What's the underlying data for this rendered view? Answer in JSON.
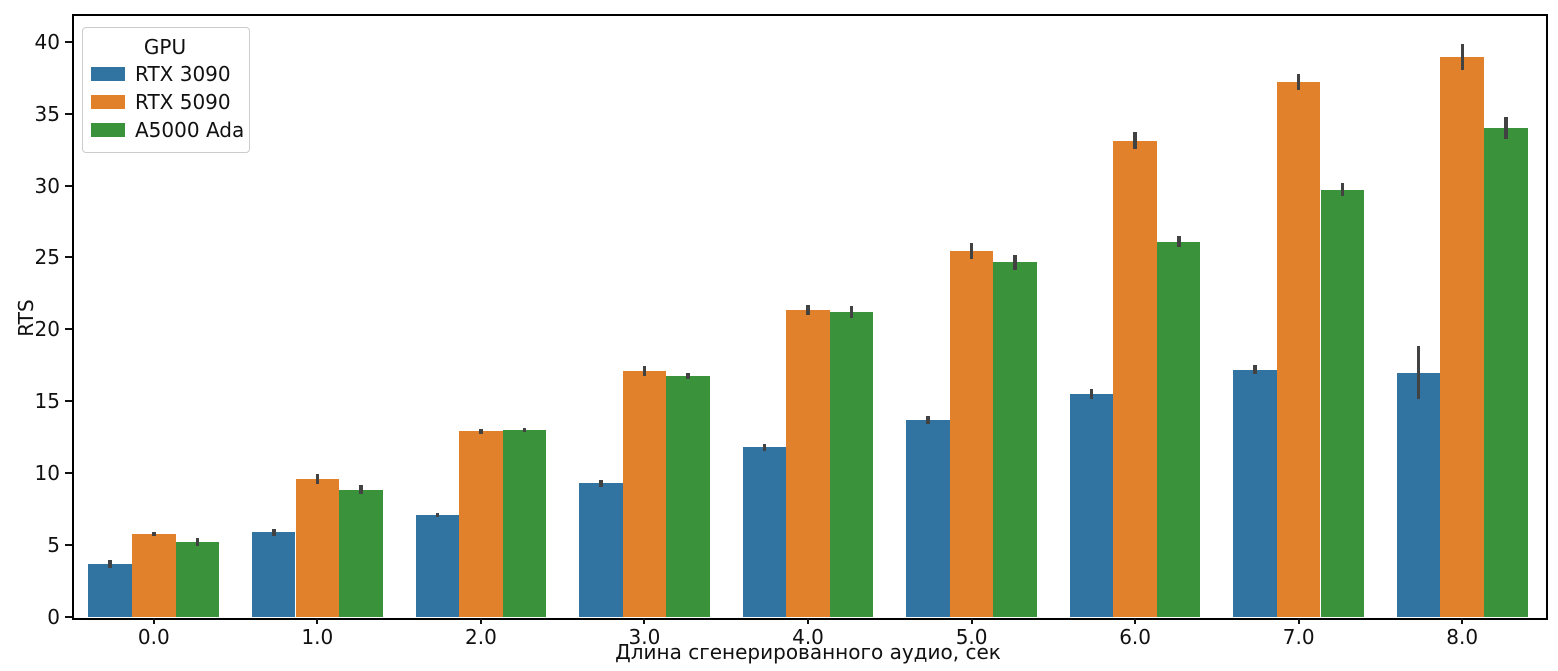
{
  "chart_data": {
    "type": "bar",
    "title": "",
    "xlabel": "Длина сгенерированного аудио, сек",
    "ylabel": "RTS",
    "categories": [
      "0.0",
      "1.0",
      "2.0",
      "3.0",
      "4.0",
      "5.0",
      "6.0",
      "7.0",
      "8.0"
    ],
    "series": [
      {
        "name": "RTX 3090",
        "color": "#3274a1",
        "values": [
          3.7,
          5.9,
          7.1,
          9.3,
          11.8,
          13.7,
          15.5,
          17.2,
          17.0
        ],
        "errors": [
          0.3,
          0.25,
          0.15,
          0.25,
          0.25,
          0.3,
          0.35,
          0.3,
          1.85
        ]
      },
      {
        "name": "RTX 5090",
        "color": "#e1812c",
        "values": [
          5.75,
          9.6,
          12.9,
          17.1,
          21.35,
          25.45,
          33.1,
          37.2,
          38.95
        ],
        "errors": [
          0.15,
          0.35,
          0.2,
          0.35,
          0.35,
          0.55,
          0.6,
          0.55,
          0.9
        ]
      },
      {
        "name": "A5000 Ada",
        "color": "#3a923a",
        "values": [
          5.2,
          8.85,
          13.0,
          16.75,
          21.2,
          24.65,
          26.1,
          29.7,
          34.0
        ],
        "errors": [
          0.3,
          0.3,
          0.15,
          0.2,
          0.45,
          0.55,
          0.4,
          0.45,
          0.75
        ]
      }
    ],
    "ylim": [
      0,
      41.85
    ],
    "yticks": [
      0,
      5,
      10,
      15,
      20,
      25,
      30,
      35,
      40
    ],
    "grid": false,
    "legend": {
      "title": "GPU",
      "position": "upper-left"
    },
    "error_bar_color": "#424242",
    "bar_group_fraction": 0.8
  }
}
